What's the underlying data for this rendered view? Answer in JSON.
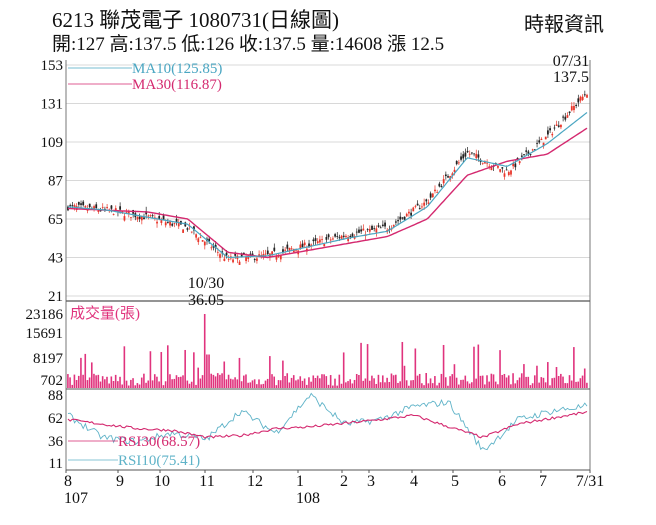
{
  "header": {
    "title": "6213  聯茂電子 1080731(日線圖)",
    "summary": "開:127 高:137.5 低:126 收:137.5 量:14608 漲 12.5",
    "brand": "時報資訊"
  },
  "colors": {
    "ma10": "#4aa6c2",
    "ma30": "#d4296f",
    "volume": "#e0337d",
    "rsi30": "#d4296f",
    "rsi10": "#5fb3c8",
    "up": "#e8362a",
    "down": "#222222",
    "grid": "#d8d8d8",
    "axis": "#777777"
  },
  "chart_data": [
    {
      "type": "line",
      "title": "6213 聯茂電子 日線圖 (價格 / 均線)",
      "ylim": [
        21,
        153
      ],
      "yticks": [
        153,
        131,
        109,
        87,
        65,
        43,
        21
      ],
      "legend": [
        {
          "name": "MA10",
          "label": "MA10(125.85)",
          "value": 125.85
        },
        {
          "name": "MA30",
          "label": "MA30(116.87)",
          "value": 116.87
        }
      ],
      "annotations": [
        {
          "label": "10/30",
          "value_label": "36.05",
          "kind": "low",
          "value": 36.05
        },
        {
          "label": "07/31",
          "value_label": "137.5",
          "kind": "last",
          "value": 137.5
        }
      ],
      "x": [
        "8",
        "9",
        "10",
        "11",
        "12",
        "1",
        "2",
        "3",
        "4",
        "5",
        "6",
        "7",
        "7/31"
      ],
      "x_sublabels": {
        "8": "107",
        "1": "108"
      },
      "series": [
        {
          "name": "Close",
          "values": [
            72,
            70,
            66,
            60,
            42,
            44,
            50,
            56,
            60,
            75,
            103,
            92,
            112,
            137.5
          ]
        },
        {
          "name": "MA10",
          "values": [
            72,
            70,
            66,
            62,
            43,
            44,
            49,
            54,
            58,
            72,
            100,
            95,
            108,
            125.85
          ]
        },
        {
          "name": "MA30",
          "values": [
            71,
            70,
            69,
            65,
            46,
            43,
            47,
            51,
            55,
            65,
            90,
            98,
            102,
            116.87
          ]
        }
      ]
    },
    {
      "type": "bar",
      "title": "成交量(張)",
      "yticks": [
        23186,
        15691,
        8197,
        702
      ],
      "ylim": [
        0,
        23186
      ],
      "peak": {
        "date": "10/30",
        "value": 23186
      },
      "last": 14608
    },
    {
      "type": "line",
      "title": "RSI",
      "yticks": [
        88,
        62,
        36,
        11
      ],
      "legend": [
        {
          "name": "RSI30",
          "label": "RSI30(68.57)",
          "value": 68.57
        },
        {
          "name": "RSI10",
          "label": "RSI10(75.41)",
          "value": 75.41
        }
      ],
      "series": [
        {
          "name": "RSI30",
          "values": [
            60,
            55,
            50,
            48,
            40,
            42,
            50,
            52,
            56,
            60,
            65,
            52,
            40,
            55,
            62,
            68.57
          ]
        },
        {
          "name": "RSI10",
          "values": [
            65,
            40,
            35,
            45,
            38,
            70,
            45,
            88,
            55,
            60,
            75,
            80,
            25,
            60,
            70,
            75.41
          ]
        }
      ]
    }
  ]
}
